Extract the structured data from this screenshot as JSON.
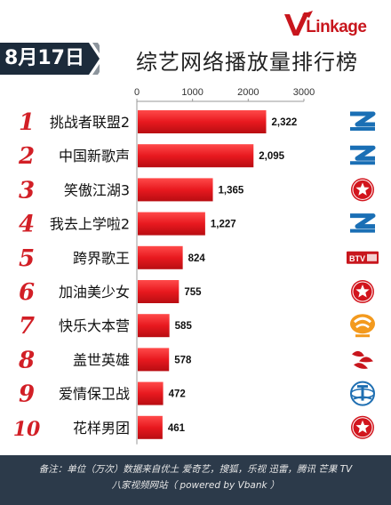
{
  "header": {
    "date": "8月17日",
    "title": "综艺网络播放量排行榜",
    "logo_v": "V",
    "logo_rest": "Linkage"
  },
  "colors": {
    "bar": "#e8191f",
    "rank": "#d21f26",
    "badge": "#1c2b3b"
  },
  "chart_data": {
    "type": "bar",
    "orientation": "horizontal",
    "title": "综艺网络播放量排行榜",
    "xlim": [
      0,
      3000
    ],
    "x_ticks": [
      "0",
      "1000",
      "2000",
      "3000"
    ],
    "grid": false,
    "categories": [
      "挑战者联盟2",
      "中国新歌声",
      "笑傲江湖3",
      "我去上学啦2",
      "跨界歌王",
      "加油美少女",
      "快乐大本营",
      "盖世英雄",
      "爱情保卫战",
      "花样男团"
    ],
    "values": [
      2322,
      2095,
      1365,
      1227,
      824,
      755,
      585,
      578,
      472,
      461
    ],
    "value_labels": [
      "2,322",
      "2,095",
      "1,365",
      "1,227",
      "824",
      "755",
      "585",
      "578",
      "472",
      "461"
    ],
    "ranks": [
      "1",
      "2",
      "3",
      "4",
      "5",
      "6",
      "7",
      "8",
      "9",
      "10"
    ],
    "channel_icons": [
      "zhejiang-tv-icon",
      "zhejiang-tv-icon",
      "dragon-tv-icon",
      "zhejiang-tv-icon",
      "btv-icon",
      "dragon-tv-icon",
      "hunan-tv-icon",
      "shenzhen-tv-icon",
      "tianjin-tv-icon",
      "dragon-tv-icon"
    ],
    "btv_label": "BTV"
  },
  "footer": {
    "line1": "备注：单位（万次）数据来自优土 爱奇艺，搜狐，乐视  迅雷，腾讯 芒果 TV",
    "line2": "八家视频网站（ powered by Vbank ）"
  }
}
